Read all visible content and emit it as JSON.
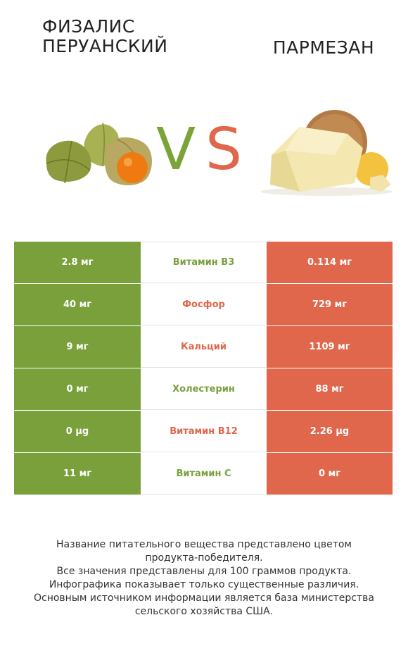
{
  "left_title": "ФИЗАЛИС\nПЕРУАНСКИЙ",
  "left_title_lines": [
    "ФИЗАЛИС",
    "ПЕРУАНСКИЙ"
  ],
  "right_title": "ПАРМЕЗАН",
  "vs": {
    "v": "V",
    "s": "S"
  },
  "colors": {
    "green": "#79a03a",
    "red": "#e0674b"
  },
  "rows": [
    {
      "left": "2.8 мг",
      "name": "Витамин B3",
      "right": "0.114 мг",
      "winner": "green"
    },
    {
      "left": "40 мг",
      "name": "Фосфор",
      "right": "729 мг",
      "winner": "red"
    },
    {
      "left": "9 мг",
      "name": "Кальций",
      "right": "1109 мг",
      "winner": "red"
    },
    {
      "left": "0 мг",
      "name": "Холестерин",
      "right": "88 мг",
      "winner": "green"
    },
    {
      "left": "0 µg",
      "name": "Витамин B12",
      "right": "2.26 µg",
      "winner": "red"
    },
    {
      "left": "11 мг",
      "name": "Витамин C",
      "right": "0 мг",
      "winner": "green"
    }
  ],
  "footer": [
    "Название питательного вещества представлено цветом",
    "продукта-победителя.",
    "Все значения представлены для 100 граммов продукта.",
    "Инфографика показывает только существенные различия.",
    "Основным источником информации является база министерства",
    "сельского хозяйства США."
  ]
}
